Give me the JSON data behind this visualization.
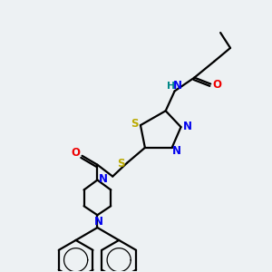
{
  "background_color": "#edf1f3",
  "atom_colors": {
    "C": "#000000",
    "N": "#0000ee",
    "O": "#ee0000",
    "S": "#bbaa00",
    "H": "#008888"
  },
  "figsize": [
    3.0,
    3.0
  ],
  "dpi": 100,
  "lw": 1.6
}
